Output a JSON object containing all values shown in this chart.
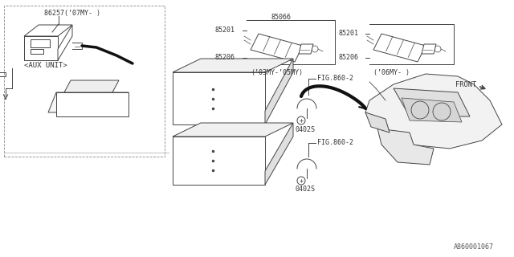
{
  "bg_color": "#FFFFFF",
  "line_color": "#444444",
  "text_color": "#333333",
  "diagram_id": "A860001067",
  "labels": {
    "aux_unit_part": "86257(’07MY- )",
    "aux_unit_label": "<AUX UNIT>",
    "p85066": "85066",
    "p85201_left": "85201",
    "p85206_left": "85206",
    "year_left": "(’03MY-’05MY)",
    "p85201_right": "85201",
    "p85206_right": "85206",
    "year_right": "(’06MY- )",
    "front": "FRONT",
    "fig860_upper": "FIG.860-2",
    "fig860_lower": "FIG.860-2",
    "screw_upper": "0402S",
    "screw_lower": "0402S"
  }
}
